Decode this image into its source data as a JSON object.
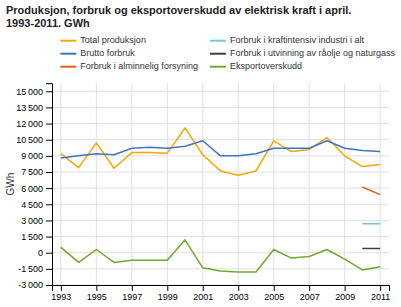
{
  "chart_data": {
    "type": "line",
    "title": "Produksjon, forbruk og eksportoverskudd av elektrisk kraft i april.\n1993-2011. GWh",
    "ylabel": "GWh",
    "x": [
      1993,
      1994,
      1995,
      1996,
      1997,
      1998,
      1999,
      2000,
      2001,
      2002,
      2003,
      2004,
      2005,
      2006,
      2007,
      2008,
      2009,
      2010,
      2011
    ],
    "series": [
      {
        "name": "Total produksjon",
        "color": "#f5a800",
        "values": [
          9200,
          7900,
          10200,
          7850,
          9300,
          9300,
          9250,
          11600,
          9100,
          7600,
          7200,
          7600,
          10400,
          9400,
          9600,
          10700,
          9000,
          8000,
          8200
        ]
      },
      {
        "name": "Brutto forbruk",
        "color": "#4472c4",
        "values": [
          8800,
          9000,
          9200,
          9100,
          9700,
          9800,
          9700,
          9900,
          10400,
          9000,
          9000,
          9200,
          9700,
          9700,
          9700,
          10400,
          9700,
          9500,
          9400
        ]
      },
      {
        "name": "Forbruk i alminnelig forsyning",
        "color": "#e06020",
        "values": [
          null,
          null,
          null,
          null,
          null,
          null,
          null,
          null,
          null,
          null,
          null,
          null,
          null,
          null,
          null,
          null,
          null,
          6100,
          5400
        ]
      },
      {
        "name": "Forbruk i kraftintensiv industri i alt",
        "color": "#70c8e0",
        "values": [
          null,
          null,
          null,
          null,
          null,
          null,
          null,
          null,
          null,
          null,
          null,
          null,
          null,
          null,
          null,
          null,
          null,
          2700,
          2700
        ]
      },
      {
        "name": "Forbruk i utvinning av råolje og naturgass",
        "color": "#404040",
        "values": [
          null,
          null,
          null,
          null,
          null,
          null,
          null,
          null,
          null,
          null,
          null,
          null,
          null,
          null,
          null,
          null,
          null,
          400,
          400
        ]
      },
      {
        "name": "Eksportoverskudd",
        "color": "#70a830",
        "values": [
          500,
          -900,
          300,
          -900,
          -700,
          -700,
          -700,
          1200,
          -1400,
          -1700,
          -1800,
          -1800,
          300,
          -500,
          -350,
          300,
          -600,
          -1600,
          -1300
        ]
      }
    ],
    "xlim": [
      1992.5,
      2011.5
    ],
    "xticks": [
      1993,
      1995,
      1997,
      1999,
      2001,
      2003,
      2005,
      2007,
      2009,
      2011
    ],
    "ylim": [
      -3000,
      15750
    ],
    "yticks": [
      {
        "value": -3000,
        "label": "-3 000"
      },
      {
        "value": -1500,
        "label": "-1 500"
      },
      0,
      {
        "value": 1500,
        "label": "1 500"
      },
      {
        "value": 3000,
        "label": "3 000"
      },
      {
        "value": 4500,
        "label": "4 500"
      },
      {
        "value": 6000,
        "label": "6 000"
      },
      {
        "value": 7500,
        "label": "7 500"
      },
      {
        "value": 9000,
        "label": "9 000"
      },
      {
        "value": 10500,
        "label": "10 500"
      },
      {
        "value": 12000,
        "label": "12 000"
      },
      {
        "value": 13500,
        "label": "13 500"
      },
      {
        "value": 15000,
        "label": "15 000"
      }
    ],
    "grid": true,
    "legend": "upper right"
  }
}
